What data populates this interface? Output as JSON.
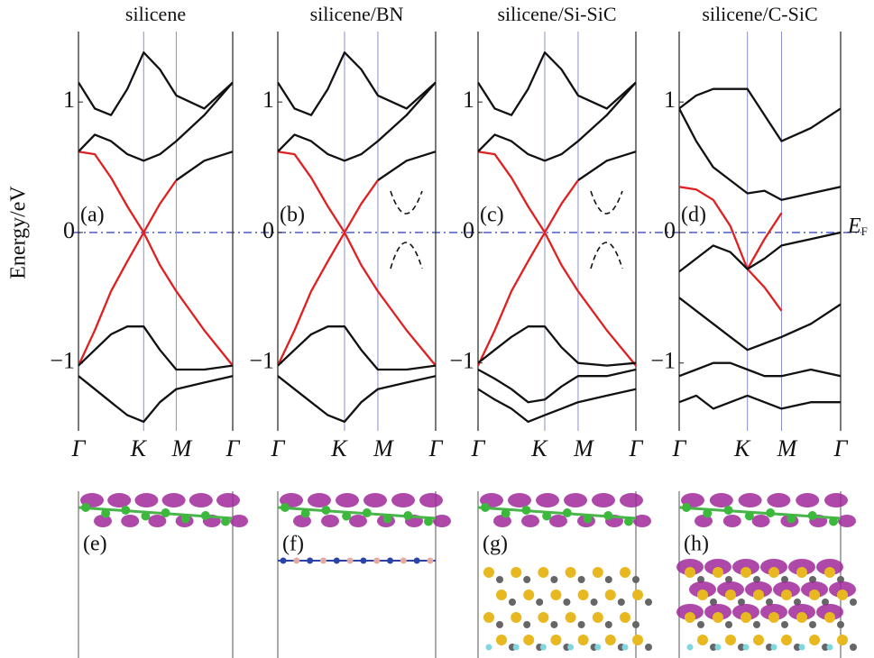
{
  "chart_data": [
    {
      "type": "line",
      "title": "silicene",
      "panel_label": "(a)",
      "y_label": "Energy/eV",
      "x": [
        0,
        0.25,
        0.5,
        0.75,
        1,
        1.25,
        1.5,
        1.93,
        2.366
      ],
      "xlim": [
        0,
        2.366
      ],
      "xticks": [
        {
          "value": 0,
          "label": "Γ"
        },
        {
          "value": 1,
          "label": "K"
        },
        {
          "value": 1.5,
          "label": "M"
        },
        {
          "value": 2.366,
          "label": "Γ"
        }
      ],
      "ylim": [
        -1.52,
        1.54
      ],
      "yticks": [
        {
          "value": -1,
          "label": "−1"
        },
        0,
        1
      ],
      "series": [
        {
          "color": "#e02020",
          "values": [
            0.62,
            0.6,
            0.42,
            0.2,
            0,
            -0.25,
            -0.45,
            -0.75,
            -1.02
          ]
        },
        {
          "color": "#e02020",
          "values": [
            -1.02,
            -0.75,
            -0.45,
            -0.22,
            0,
            0.22,
            0.4,
            null,
            null
          ]
        },
        {
          "color": "#111111",
          "values": [
            null,
            null,
            null,
            null,
            null,
            null,
            0.4,
            0.55,
            0.62
          ]
        },
        {
          "color": "#111111",
          "values": [
            1.15,
            0.95,
            0.9,
            1.1,
            1.38,
            1.25,
            1.05,
            0.95,
            1.15
          ]
        },
        {
          "color": "#111111",
          "values": [
            0.62,
            0.75,
            0.7,
            0.6,
            0.55,
            0.6,
            0.7,
            0.9,
            1.15
          ]
        },
        {
          "color": "#111111",
          "values": [
            -1.02,
            -0.9,
            -0.78,
            -0.72,
            -0.72,
            -0.9,
            -1.05,
            -1.05,
            -1.02
          ]
        },
        {
          "color": "#111111",
          "values": [
            -1.1,
            -1.2,
            -1.3,
            -1.4,
            -1.45,
            -1.3,
            -1.2,
            -1.15,
            -1.1
          ]
        }
      ]
    },
    {
      "type": "line",
      "title": "silicene/BN",
      "panel_label": "(b)",
      "x": [
        0,
        0.25,
        0.5,
        0.75,
        1,
        1.25,
        1.5,
        1.93,
        2.366
      ],
      "xlim": [
        0,
        2.366
      ],
      "xticks": [
        {
          "value": 0,
          "label": "Γ"
        },
        {
          "value": 1,
          "label": "K"
        },
        {
          "value": 1.5,
          "label": "M"
        },
        {
          "value": 2.366,
          "label": "Γ"
        }
      ],
      "ylim": [
        -1.52,
        1.54
      ],
      "yticks": [
        {
          "value": -1,
          "label": "−1"
        },
        0,
        1
      ],
      "series": [
        {
          "color": "#e02020",
          "values": [
            0.62,
            0.6,
            0.42,
            0.2,
            0,
            -0.25,
            -0.45,
            -0.75,
            -1.02
          ]
        },
        {
          "color": "#e02020",
          "values": [
            -1.02,
            -0.75,
            -0.45,
            -0.22,
            0,
            0.22,
            0.4,
            null,
            null
          ]
        },
        {
          "color": "#111111",
          "values": [
            null,
            null,
            null,
            null,
            null,
            null,
            0.4,
            0.55,
            0.62
          ]
        },
        {
          "color": "#111111",
          "values": [
            1.15,
            0.95,
            0.9,
            1.1,
            1.38,
            1.25,
            1.05,
            0.95,
            1.15
          ]
        },
        {
          "color": "#111111",
          "values": [
            0.62,
            0.75,
            0.7,
            0.6,
            0.55,
            0.6,
            0.7,
            0.9,
            1.15
          ]
        },
        {
          "color": "#111111",
          "values": [
            -1.02,
            -0.9,
            -0.78,
            -0.72,
            -0.72,
            -0.9,
            -1.05,
            -1.05,
            -1.02
          ]
        },
        {
          "color": "#111111",
          "values": [
            -1.1,
            -1.2,
            -1.3,
            -1.4,
            -1.45,
            -1.3,
            -1.2,
            -1.15,
            -1.1
          ]
        }
      ]
    },
    {
      "type": "line",
      "title": "silicene/Si-SiC",
      "panel_label": "(c)",
      "x": [
        0,
        0.25,
        0.5,
        0.75,
        1,
        1.25,
        1.5,
        1.93,
        2.366
      ],
      "xlim": [
        0,
        2.366
      ],
      "xticks": [
        {
          "value": 0,
          "label": "Γ"
        },
        {
          "value": 1,
          "label": "K"
        },
        {
          "value": 1.5,
          "label": "M"
        },
        {
          "value": 2.366,
          "label": "Γ"
        }
      ],
      "ylim": [
        -1.52,
        1.54
      ],
      "yticks": [
        {
          "value": -1,
          "label": "−1"
        },
        0,
        1
      ],
      "series": [
        {
          "color": "#e02020",
          "values": [
            0.62,
            0.6,
            0.42,
            0.2,
            0,
            -0.25,
            -0.45,
            -0.75,
            -1.02
          ]
        },
        {
          "color": "#e02020",
          "values": [
            -1.02,
            -0.75,
            -0.45,
            -0.22,
            0,
            0.22,
            0.4,
            null,
            null
          ]
        },
        {
          "color": "#111111",
          "values": [
            null,
            null,
            null,
            null,
            null,
            null,
            0.4,
            0.55,
            0.62
          ]
        },
        {
          "color": "#111111",
          "values": [
            1.15,
            0.95,
            0.9,
            1.1,
            1.38,
            1.25,
            1.05,
            0.95,
            1.15
          ]
        },
        {
          "color": "#111111",
          "values": [
            0.62,
            0.75,
            0.7,
            0.6,
            0.55,
            0.6,
            0.7,
            0.9,
            1.15
          ]
        },
        {
          "color": "#111111",
          "values": [
            -1.0,
            -0.9,
            -0.8,
            -0.72,
            -0.72,
            -0.88,
            -1.0,
            -1.02,
            -1.0
          ]
        },
        {
          "color": "#111111",
          "values": [
            -1.05,
            -1.12,
            -1.2,
            -1.3,
            -1.28,
            -1.18,
            -1.1,
            -1.1,
            -1.05
          ]
        },
        {
          "color": "#111111",
          "values": [
            -1.2,
            -1.28,
            -1.35,
            -1.45,
            -1.4,
            -1.35,
            -1.3,
            -1.25,
            -1.2
          ]
        }
      ]
    },
    {
      "type": "line",
      "title": "silicene/C-SiC",
      "panel_label": "(d)",
      "fermi_label": {
        "main": "E",
        "sub": "F"
      },
      "x": [
        0,
        0.25,
        0.5,
        0.75,
        1,
        1.25,
        1.5,
        1.93,
        2.366
      ],
      "xlim": [
        0,
        2.366
      ],
      "xticks": [
        {
          "value": 0,
          "label": "Γ"
        },
        {
          "value": 1,
          "label": "K"
        },
        {
          "value": 1.5,
          "label": "M"
        },
        {
          "value": 2.366,
          "label": "Γ"
        }
      ],
      "ylim": [
        -1.52,
        1.54
      ],
      "yticks": [
        {
          "value": -1,
          "label": "−1"
        },
        0,
        1
      ],
      "series": [
        {
          "color": "#e02020",
          "values": [
            0.35,
            0.33,
            0.25,
            0.05,
            -0.28,
            -0.05,
            0.15,
            null,
            null
          ]
        },
        {
          "color": "#e02020",
          "values": [
            null,
            null,
            null,
            null,
            -0.28,
            -0.42,
            -0.6,
            null,
            null
          ]
        },
        {
          "color": "#111111",
          "values": [
            0.95,
            0.7,
            0.5,
            0.4,
            0.3,
            0.32,
            0.25,
            0.3,
            0.35
          ]
        },
        {
          "color": "#111111",
          "values": [
            0.95,
            1.05,
            1.1,
            1.1,
            1.1,
            0.9,
            0.7,
            0.8,
            0.95
          ]
        },
        {
          "color": "#111111",
          "values": [
            -0.3,
            -0.2,
            -0.1,
            -0.15,
            -0.28,
            -0.2,
            -0.1,
            -0.05,
            0
          ]
        },
        {
          "color": "#111111",
          "values": [
            -0.5,
            -0.6,
            -0.7,
            -0.8,
            -0.9,
            -0.85,
            -0.8,
            -0.7,
            -0.55
          ]
        },
        {
          "color": "#111111",
          "values": [
            -1.1,
            -1.05,
            -1.0,
            -1.0,
            -1.05,
            -1.1,
            -1.1,
            -1.05,
            -1.1
          ]
        },
        {
          "color": "#111111",
          "values": [
            -1.3,
            -1.25,
            -1.35,
            -1.3,
            -1.25,
            -1.3,
            -1.35,
            -1.3,
            -1.3
          ]
        }
      ]
    }
  ],
  "structure_panels": [
    {
      "label": "(e)"
    },
    {
      "label": "(f)"
    },
    {
      "label": "(g)"
    },
    {
      "label": "(h)"
    }
  ]
}
